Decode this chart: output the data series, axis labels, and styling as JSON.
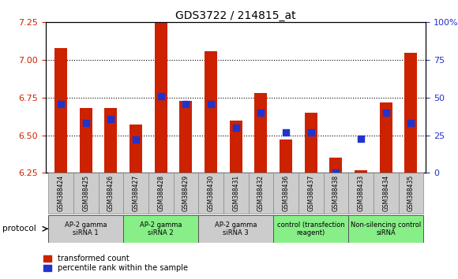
{
  "title": "GDS3722 / 214815_at",
  "samples": [
    "GSM388424",
    "GSM388425",
    "GSM388426",
    "GSM388427",
    "GSM388428",
    "GSM388429",
    "GSM388430",
    "GSM388431",
    "GSM388432",
    "GSM388436",
    "GSM388437",
    "GSM388438",
    "GSM388433",
    "GSM388434",
    "GSM388435"
  ],
  "transformed_count": [
    7.08,
    6.68,
    6.68,
    6.57,
    7.25,
    6.73,
    7.06,
    6.6,
    6.78,
    6.47,
    6.65,
    6.35,
    6.27,
    6.72,
    7.05
  ],
  "percentile_rank": [
    46,
    33,
    36,
    22,
    51,
    46,
    46,
    30,
    40,
    27,
    27,
    0,
    23,
    40,
    33
  ],
  "ylim_left": [
    6.25,
    7.25
  ],
  "ylim_right": [
    0,
    100
  ],
  "yticks_left": [
    6.25,
    6.5,
    6.75,
    7.0,
    7.25
  ],
  "yticks_right": [
    0,
    25,
    50,
    75,
    100
  ],
  "bar_color": "#cc2200",
  "dot_color": "#2233cc",
  "groups": [
    {
      "label": "AP-2 gamma\nsiRNA 1",
      "start": 0,
      "end": 3,
      "color": "#cccccc"
    },
    {
      "label": "AP-2 gamma\nsiRNA 2",
      "start": 3,
      "end": 6,
      "color": "#88ee88"
    },
    {
      "label": "AP-2 gamma\nsiRNA 3",
      "start": 6,
      "end": 9,
      "color": "#cccccc"
    },
    {
      "label": "control (transfection\nreagent)",
      "start": 9,
      "end": 12,
      "color": "#88ee88"
    },
    {
      "label": "Non-silencing control\nsiRNA",
      "start": 12,
      "end": 15,
      "color": "#88ee88"
    }
  ],
  "protocol_label": "protocol",
  "legend1": "transformed count",
  "legend2": "percentile rank within the sample",
  "bar_width": 0.5,
  "dot_size": 28,
  "background_color": "#ffffff",
  "grid_color": "#000000",
  "left_tick_color": "#cc2200",
  "right_tick_color": "#2233cc",
  "sample_box_color": "#cccccc",
  "sample_box_edge": "#888888"
}
